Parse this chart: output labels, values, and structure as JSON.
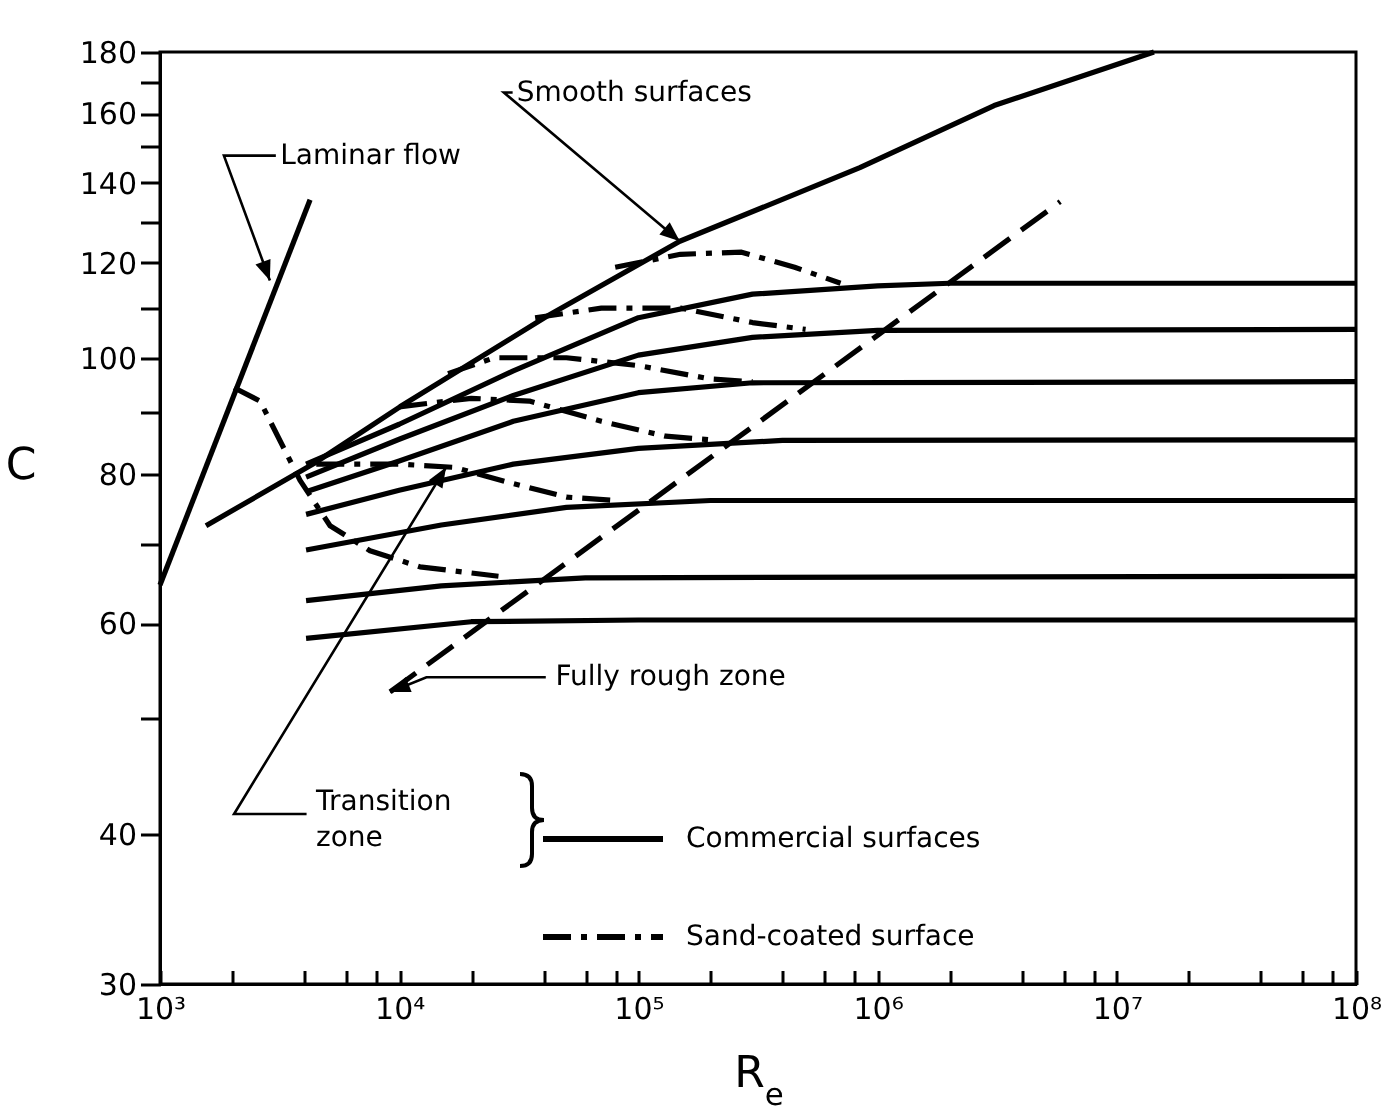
{
  "chart_data": {
    "type": "line",
    "xlabel": "R$_{e}$",
    "ylabel": "C",
    "log": "xy",
    "grid": false,
    "marker": "none",
    "legend": "bottom",
    "xlim": [
      1000,
      100000000
    ],
    "ylim": [
      30,
      180
    ],
    "xticks": [
      {
        "value": 1000,
        "label": "10³"
      },
      {
        "value": 2000,
        "label": null
      },
      {
        "value": 4000,
        "label": null
      },
      {
        "value": 6000,
        "label": null
      },
      {
        "value": 8000,
        "label": null
      },
      {
        "value": 10000,
        "label": "10⁴"
      },
      {
        "value": 20000,
        "label": null
      },
      {
        "value": 40000,
        "label": null
      },
      {
        "value": 60000,
        "label": null
      },
      {
        "value": 80000,
        "label": null
      },
      {
        "value": 100000,
        "label": "10⁵"
      },
      {
        "value": 200000,
        "label": null
      },
      {
        "value": 400000,
        "label": null
      },
      {
        "value": 600000,
        "label": null
      },
      {
        "value": 800000,
        "label": null
      },
      {
        "value": 1000000,
        "label": "10⁶"
      },
      {
        "value": 2000000,
        "label": null
      },
      {
        "value": 4000000,
        "label": null
      },
      {
        "value": 6000000,
        "label": null
      },
      {
        "value": 8000000,
        "label": null
      },
      {
        "value": 10000000,
        "label": "10⁷"
      },
      {
        "value": 20000000,
        "label": null
      },
      {
        "value": 40000000,
        "label": null
      },
      {
        "value": 60000000,
        "label": null
      },
      {
        "value": 80000000,
        "label": null
      },
      {
        "value": 100000000,
        "label": "10⁸"
      }
    ],
    "yticks": [
      30,
      40,
      {
        "value": 50,
        "label": null
      },
      60,
      {
        "value": 70,
        "label": null
      },
      80,
      {
        "value": 90,
        "label": null
      },
      100,
      {
        "value": 110,
        "label": null
      },
      120,
      {
        "value": 130,
        "label": null
      },
      140,
      {
        "value": 150,
        "label": null
      },
      160,
      {
        "value": 170,
        "label": null
      },
      180
    ],
    "series": [
      {
        "type": "line",
        "color": "#000000",
        "line_style": "solid",
        "x": [
          1000,
          4240
        ],
        "values": [
          64.6,
          135.5
        ]
      },
      {
        "type": "line",
        "color": "#000000",
        "line_style": "solid",
        "x": [
          1557,
          4400,
          10070,
          41100,
          149000,
          843000,
          3070000,
          14300000
        ],
        "values": [
          72.4,
          81.6,
          91.0,
          108.2,
          125.1,
          144.1,
          162.4,
          180
        ]
      },
      {
        "type": "line",
        "color": "#000000",
        "line_style": "dashed",
        "x": [
          9160,
          5800000
        ],
        "values": [
          52.6,
          135
        ]
      },
      {
        "type": "line",
        "name": "Commercial surfaces",
        "color": "#000000",
        "line_style": "solid",
        "x": [
          4080,
          10000,
          30000,
          100000,
          300000,
          1000000,
          2000000,
          100000000
        ],
        "values": [
          81.5,
          88,
          97.5,
          108,
          113,
          114.8,
          115.4,
          115.4
        ]
      },
      {
        "type": "line",
        "color": "#000000",
        "line_style": "solid",
        "x": [
          4080,
          10000,
          30000,
          100000,
          300000,
          1000000,
          100000000
        ],
        "values": [
          79.5,
          85.5,
          93,
          100.5,
          104,
          105.4,
          105.6
        ]
      },
      {
        "type": "line",
        "color": "#000000",
        "line_style": "solid",
        "x": [
          4080,
          10000,
          30000,
          100000,
          300000,
          100000000
        ],
        "values": [
          77.3,
          82,
          88.5,
          93.5,
          95.3,
          95.5
        ]
      },
      {
        "type": "line",
        "color": "#000000",
        "line_style": "solid",
        "x": [
          4080,
          10000,
          30000,
          100000,
          400000,
          100000000
        ],
        "values": [
          74,
          77.5,
          81.5,
          84,
          85.3,
          85.4
        ]
      },
      {
        "type": "line",
        "color": "#000000",
        "line_style": "solid",
        "x": [
          4080,
          15000,
          50000,
          200000,
          100000000
        ],
        "values": [
          69.1,
          72.5,
          75,
          76,
          76
        ]
      },
      {
        "type": "line",
        "color": "#000000",
        "line_style": "solid",
        "x": [
          4080,
          15000,
          60000,
          100000000
        ],
        "values": [
          62.7,
          64.5,
          65.5,
          65.7
        ]
      },
      {
        "type": "line",
        "color": "#000000",
        "line_style": "solid",
        "x": [
          4080,
          20000,
          100000,
          100000000
        ],
        "values": [
          58.3,
          60.2,
          60.4,
          60.4
        ]
      },
      {
        "type": "line",
        "name": "Sand-coated surface",
        "color": "#000000",
        "line_style": "dashdot",
        "x": [
          80000,
          150000,
          270000,
          450000,
          700000
        ],
        "values": [
          119,
          122,
          122.5,
          119,
          115.4
        ]
      },
      {
        "type": "line",
        "color": "#000000",
        "line_style": "dashdot",
        "x": [
          37000,
          70000,
          150000,
          300000,
          500000
        ],
        "values": [
          108,
          110,
          110,
          107,
          105.6
        ]
      },
      {
        "type": "line",
        "color": "#000000",
        "line_style": "dashdot",
        "x": [
          16000,
          25000,
          50000,
          100000,
          200000,
          300000
        ],
        "values": [
          97,
          100,
          100,
          98.5,
          96,
          95.5
        ]
      },
      {
        "type": "line",
        "color": "#000000",
        "line_style": "dashdot",
        "x": [
          10000,
          20000,
          35000,
          70000,
          130000,
          200000
        ],
        "values": [
          91,
          92.5,
          92,
          88.5,
          86,
          85.4
        ]
      },
      {
        "type": "line",
        "color": "#000000",
        "line_style": "dashdot",
        "x": [
          4500,
          10000,
          17000,
          30000,
          50000,
          80000
        ],
        "values": [
          81.5,
          81.5,
          81,
          78.5,
          76.5,
          76
        ]
      },
      {
        "type": "line",
        "color": "#000000",
        "line_style": "dashdot",
        "x": [
          2040,
          2620,
          3850,
          5140,
          7550,
          12200,
          26000
        ],
        "values": [
          94.4,
          92,
          79,
          72.4,
          69,
          66.9,
          65.7
        ]
      }
    ],
    "annotations": [
      {
        "text": "Laminar flow",
        "x": 2880,
        "y": 116
      },
      {
        "text": "Smooth surfaces",
        "x": 149000,
        "y": 125.1
      },
      {
        "text": "Fully rough zone",
        "x": 9160,
        "y": 52.6
      },
      {
        "text": "Transition zone",
        "x": 15700,
        "y": 81
      }
    ]
  }
}
